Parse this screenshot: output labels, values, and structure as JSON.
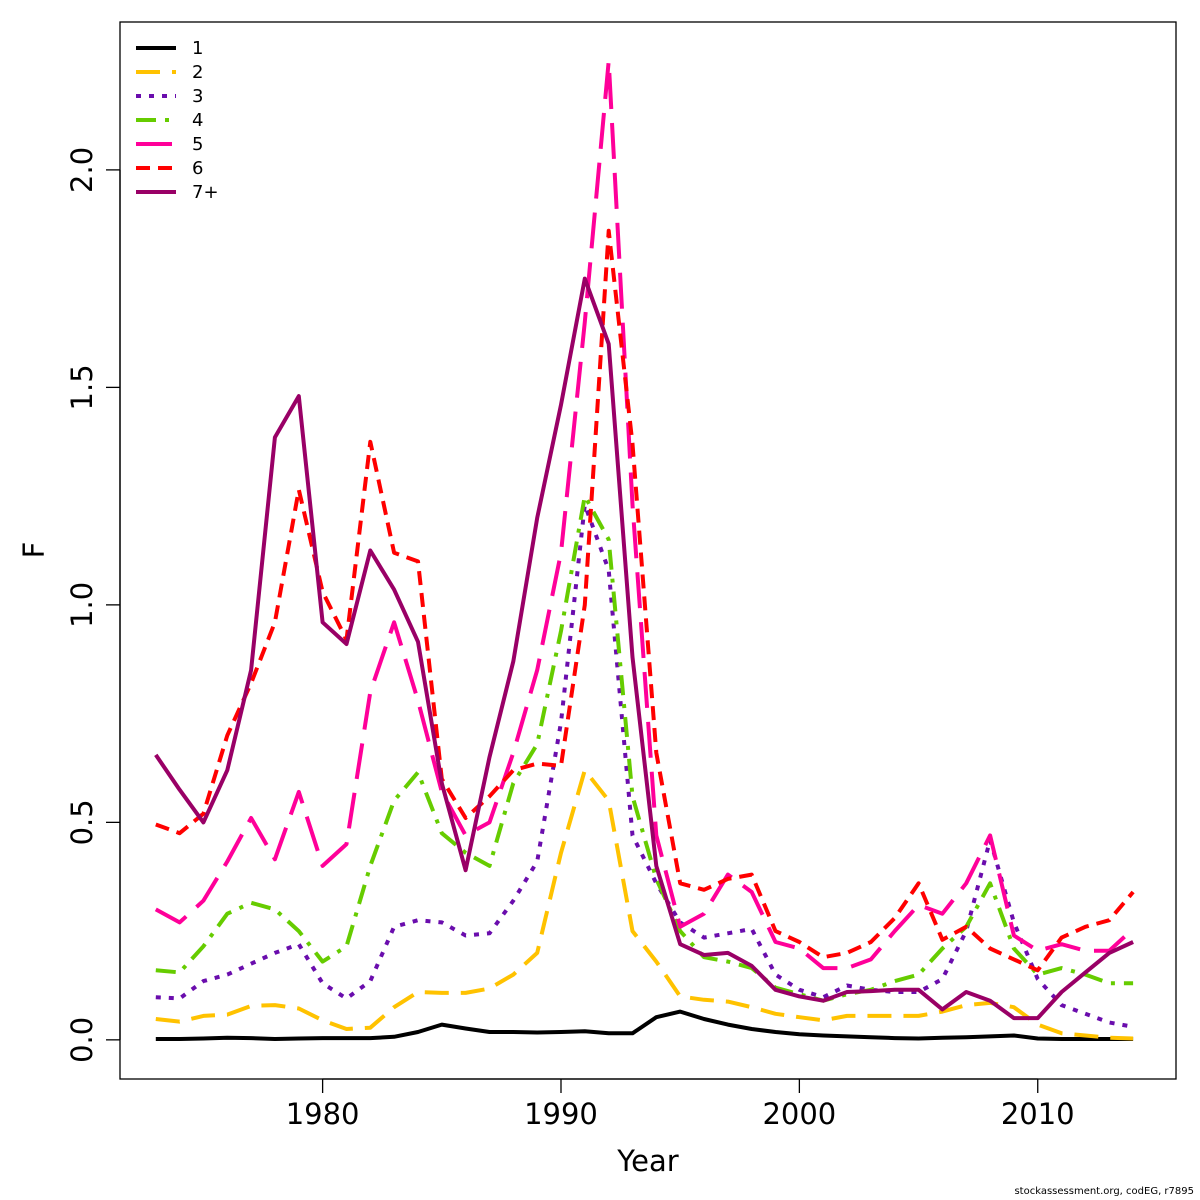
{
  "chart_data": {
    "type": "line",
    "xlabel": "Year",
    "ylabel": "F",
    "xlim": [
      1971.5,
      1976.5
    ],
    "ylim": [
      -0.09,
      2.34
    ],
    "x_ticks": [
      1980,
      1990,
      2000,
      2010
    ],
    "y_ticks": [
      "0.0",
      "0.5",
      "1.0",
      "1.5",
      "2.0"
    ],
    "grid": false,
    "legend_position": "top-left",
    "x": [
      1973,
      1974,
      1975,
      1976,
      1977,
      1978,
      1979,
      1980,
      1981,
      1982,
      1983,
      1984,
      1985,
      1986,
      1987,
      1988,
      1989,
      1990,
      1991,
      1992,
      1993,
      1994,
      1995,
      1996,
      1997,
      1998,
      1999,
      2000,
      2001,
      2002,
      2003,
      2004,
      2005,
      2006,
      2007,
      2008,
      2009,
      2010,
      2011,
      2012,
      2013,
      2014
    ],
    "series": [
      {
        "name": "1",
        "color": "#000000",
        "dash": "solid",
        "values": [
          0.002,
          0.002,
          0.003,
          0.005,
          0.004,
          0.002,
          0.003,
          0.004,
          0.004,
          0.004,
          0.007,
          0.018,
          0.035,
          0.026,
          0.018,
          0.018,
          0.017,
          0.018,
          0.02,
          0.015,
          0.015,
          0.052,
          0.065,
          0.048,
          0.035,
          0.025,
          0.018,
          0.013,
          0.01,
          0.008,
          0.006,
          0.004,
          0.003,
          0.005,
          0.006,
          0.008,
          0.01,
          0.003,
          0.002,
          0.002,
          0.002,
          0.002
        ]
      },
      {
        "name": "2",
        "color": "#FFC200",
        "dash": "24,12",
        "values": [
          0.048,
          0.042,
          0.055,
          0.058,
          0.078,
          0.08,
          0.072,
          0.045,
          0.025,
          0.028,
          0.075,
          0.11,
          0.108,
          0.108,
          0.118,
          0.15,
          0.2,
          0.43,
          0.62,
          0.55,
          0.25,
          0.18,
          0.1,
          0.092,
          0.088,
          0.075,
          0.06,
          0.052,
          0.045,
          0.055,
          0.055,
          0.055,
          0.055,
          0.065,
          0.08,
          0.085,
          0.075,
          0.035,
          0.015,
          0.01,
          0.005,
          0.003
        ]
      },
      {
        "name": "3",
        "color": "#6A0DAD",
        "dash": "5,8",
        "values": [
          0.098,
          0.095,
          0.135,
          0.15,
          0.175,
          0.2,
          0.22,
          0.13,
          0.095,
          0.135,
          0.26,
          0.275,
          0.27,
          0.24,
          0.245,
          0.32,
          0.41,
          0.73,
          1.23,
          1.08,
          0.47,
          0.36,
          0.27,
          0.235,
          0.245,
          0.255,
          0.15,
          0.115,
          0.098,
          0.125,
          0.115,
          0.11,
          0.11,
          0.14,
          0.25,
          0.46,
          0.27,
          0.14,
          0.08,
          0.06,
          0.04,
          0.03
        ]
      },
      {
        "name": "4",
        "color": "#66CC00",
        "dash": "20,9,4,9",
        "values": [
          0.16,
          0.155,
          0.215,
          0.29,
          0.315,
          0.3,
          0.25,
          0.18,
          0.215,
          0.4,
          0.55,
          0.615,
          0.475,
          0.43,
          0.4,
          0.59,
          0.68,
          0.94,
          1.25,
          1.15,
          0.56,
          0.37,
          0.25,
          0.19,
          0.18,
          0.165,
          0.12,
          0.105,
          0.09,
          0.105,
          0.115,
          0.135,
          0.15,
          0.21,
          0.26,
          0.36,
          0.21,
          0.15,
          0.165,
          0.15,
          0.13,
          0.13
        ]
      },
      {
        "name": "5",
        "color": "#FF0099",
        "dash": "36,14",
        "values": [
          0.3,
          0.27,
          0.32,
          0.41,
          0.51,
          0.415,
          0.57,
          0.4,
          0.45,
          0.8,
          0.96,
          0.78,
          0.57,
          0.47,
          0.5,
          0.66,
          0.85,
          1.12,
          1.65,
          2.25,
          1.23,
          0.47,
          0.26,
          0.29,
          0.38,
          0.34,
          0.225,
          0.21,
          0.165,
          0.165,
          0.185,
          0.25,
          0.31,
          0.29,
          0.36,
          0.47,
          0.24,
          0.205,
          0.22,
          0.205,
          0.205,
          0.255
        ]
      },
      {
        "name": "6",
        "color": "#FF0000",
        "dash": "14,8",
        "values": [
          0.495,
          0.475,
          0.52,
          0.7,
          0.82,
          0.96,
          1.265,
          1.03,
          0.92,
          1.375,
          1.12,
          1.1,
          0.6,
          0.51,
          0.56,
          0.62,
          0.635,
          0.63,
          1.0,
          1.86,
          1.37,
          0.66,
          0.36,
          0.345,
          0.37,
          0.38,
          0.25,
          0.225,
          0.19,
          0.2,
          0.225,
          0.28,
          0.36,
          0.23,
          0.26,
          0.21,
          0.185,
          0.16,
          0.235,
          0.26,
          0.275,
          0.34
        ]
      },
      {
        "name": "7+",
        "color": "#990066",
        "dash": "solid",
        "values": [
          0.655,
          0.575,
          0.5,
          0.62,
          0.85,
          1.385,
          1.48,
          0.96,
          0.91,
          1.125,
          1.035,
          0.915,
          0.59,
          0.39,
          0.65,
          0.87,
          1.2,
          1.46,
          1.75,
          1.6,
          0.88,
          0.4,
          0.22,
          0.195,
          0.2,
          0.17,
          0.115,
          0.1,
          0.09,
          0.11,
          0.112,
          0.115,
          0.115,
          0.07,
          0.11,
          0.09,
          0.05,
          0.05,
          0.11,
          0.155,
          0.2,
          0.225
        ]
      }
    ]
  },
  "credit": "stockassessment.org, codEG, r7895"
}
